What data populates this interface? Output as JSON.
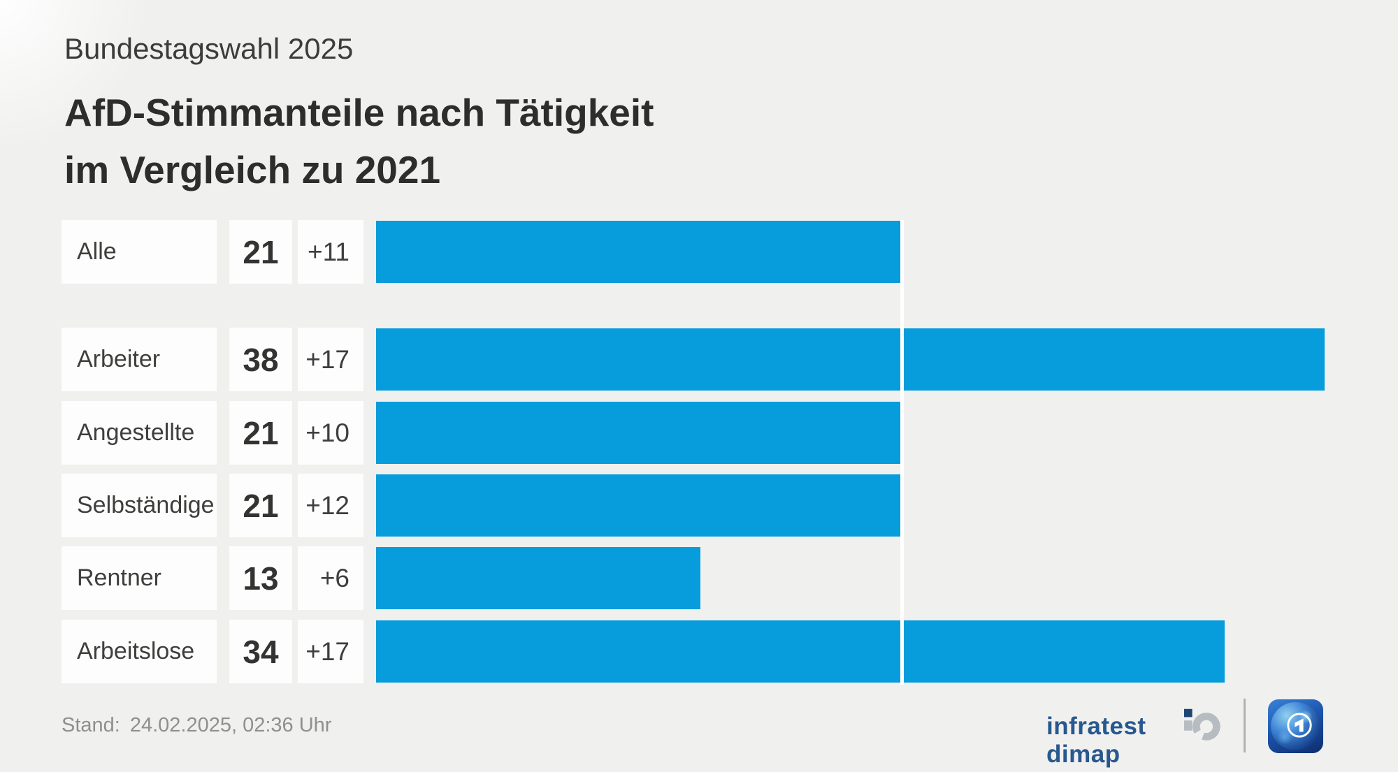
{
  "header": {
    "kicker": "Bundestagswahl 2025",
    "title_line1": "AfD-Stimmanteile nach Tätigkeit",
    "title_line2": "im Vergleich zu 2021"
  },
  "chart_data": {
    "type": "bar",
    "orientation": "horizontal",
    "subtitle": "Bundestagswahl 2025",
    "title": "AfD-Stimmanteile nach Tätigkeit im Vergleich zu 2021",
    "categories": [
      "Alle",
      "Arbeiter",
      "Angestellte",
      "Selbständige",
      "Rentner",
      "Arbeitslose"
    ],
    "values": [
      21,
      38,
      21,
      21,
      13,
      34
    ],
    "change_vs_2021": [
      "+11",
      "+17",
      "+10",
      "+12",
      "+6",
      "+17"
    ],
    "reference_line_value": 21,
    "xlim": [
      0,
      41
    ],
    "grid": false,
    "legend": false,
    "bar_color": "#079cdc"
  },
  "footer": {
    "stand_label": "Stand:",
    "stand_value": "24.02.2025, 02:36 Uhr",
    "source": "infratest dimap"
  }
}
